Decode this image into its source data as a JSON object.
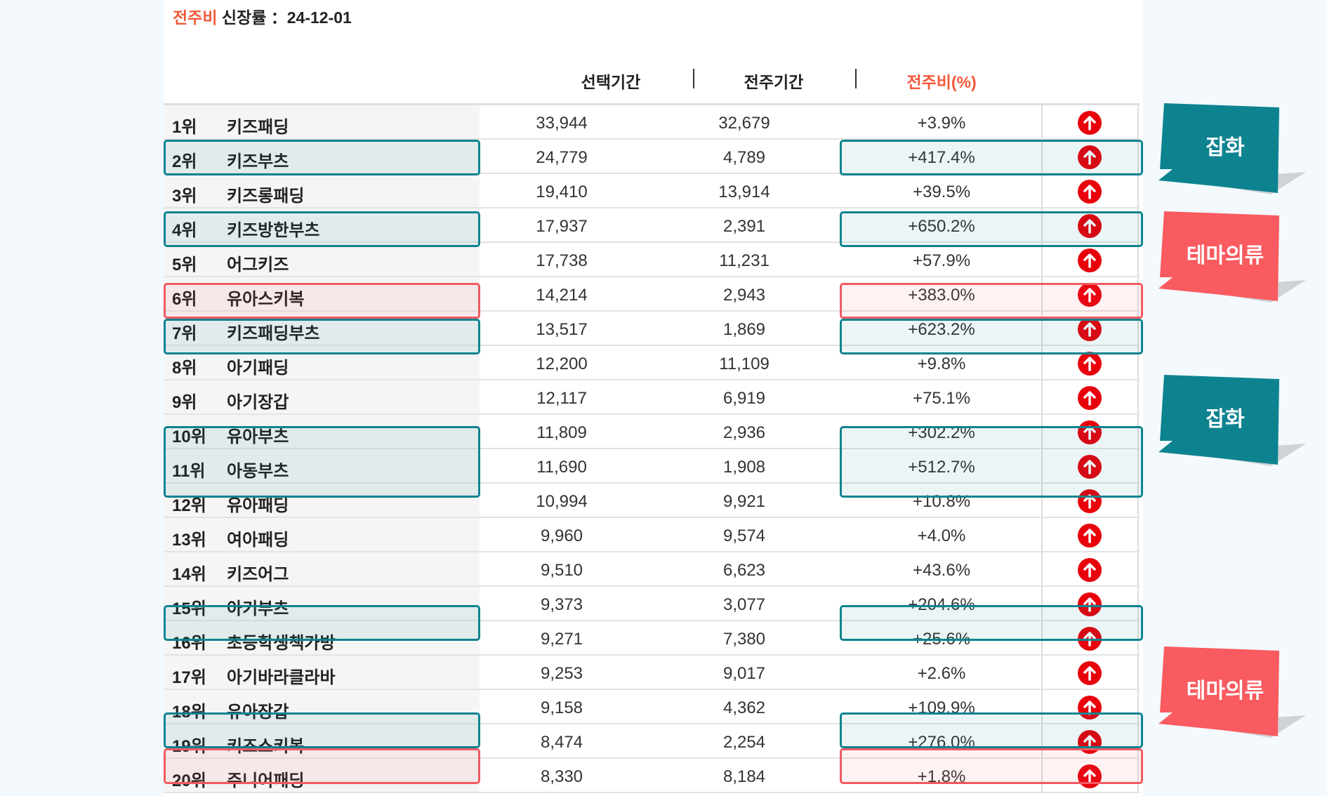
{
  "title": {
    "accent": "전주비",
    "rest": "신장률 ：24-12-01"
  },
  "headers": {
    "selected": "선택기간",
    "previous": "전주기간",
    "ratio": "전주비(%)"
  },
  "rows": [
    {
      "rank": "1위",
      "keyword": "키즈패딩",
      "selected": "33,944",
      "previous": "32,679",
      "ratio": "+3.9%",
      "hl": ""
    },
    {
      "rank": "2위",
      "keyword": "키즈부츠",
      "selected": "24,779",
      "previous": "4,789",
      "ratio": "+417.4%",
      "hl": "teal"
    },
    {
      "rank": "3위",
      "keyword": "키즈롱패딩",
      "selected": "19,410",
      "previous": "13,914",
      "ratio": "+39.5%",
      "hl": ""
    },
    {
      "rank": "4위",
      "keyword": "키즈방한부츠",
      "selected": "17,937",
      "previous": "2,391",
      "ratio": "+650.2%",
      "hl": "teal"
    },
    {
      "rank": "5위",
      "keyword": "어그키즈",
      "selected": "17,738",
      "previous": "11,231",
      "ratio": "+57.9%",
      "hl": ""
    },
    {
      "rank": "6위",
      "keyword": "유아스키복",
      "selected": "14,214",
      "previous": "2,943",
      "ratio": "+383.0%",
      "hl": "pink"
    },
    {
      "rank": "7위",
      "keyword": "키즈패딩부츠",
      "selected": "13,517",
      "previous": "1,869",
      "ratio": "+623.2%",
      "hl": "teal"
    },
    {
      "rank": "8위",
      "keyword": "아기패딩",
      "selected": "12,200",
      "previous": "11,109",
      "ratio": "+9.8%",
      "hl": ""
    },
    {
      "rank": "9위",
      "keyword": "아기장갑",
      "selected": "12,117",
      "previous": "6,919",
      "ratio": "+75.1%",
      "hl": ""
    },
    {
      "rank": "10위",
      "keyword": "유아부츠",
      "selected": "11,809",
      "previous": "2,936",
      "ratio": "+302.2%",
      "hl": "teal2"
    },
    {
      "rank": "11위",
      "keyword": "아동부츠",
      "selected": "11,690",
      "previous": "1,908",
      "ratio": "+512.7%",
      "hl": "teal2"
    },
    {
      "rank": "12위",
      "keyword": "유아패딩",
      "selected": "10,994",
      "previous": "9,921",
      "ratio": "+10.8%",
      "hl": ""
    },
    {
      "rank": "13위",
      "keyword": "여아패딩",
      "selected": "9,960",
      "previous": "9,574",
      "ratio": "+4.0%",
      "hl": ""
    },
    {
      "rank": "14위",
      "keyword": "키즈어그",
      "selected": "9,510",
      "previous": "6,623",
      "ratio": "+43.6%",
      "hl": ""
    },
    {
      "rank": "15위",
      "keyword": "아기부츠",
      "selected": "9,373",
      "previous": "3,077",
      "ratio": "+204.6%",
      "hl": "teal"
    },
    {
      "rank": "16위",
      "keyword": "초등학생책가방",
      "selected": "9,271",
      "previous": "7,380",
      "ratio": "+25.6%",
      "hl": ""
    },
    {
      "rank": "17위",
      "keyword": "아기바라클라바",
      "selected": "9,253",
      "previous": "9,017",
      "ratio": "+2.6%",
      "hl": ""
    },
    {
      "rank": "18위",
      "keyword": "유아장갑",
      "selected": "9,158",
      "previous": "4,362",
      "ratio": "+109.9%",
      "hl": "teal"
    },
    {
      "rank": "19위",
      "keyword": "키즈스키복",
      "selected": "8,474",
      "previous": "2,254",
      "ratio": "+276.0%",
      "hl": "pink"
    },
    {
      "rank": "20위",
      "keyword": "주니어패딩",
      "selected": "8,330",
      "previous": "8,184",
      "ratio": "+1.8%",
      "hl": ""
    }
  ],
  "callouts": [
    {
      "label": "잡화",
      "color": "#0e8390"
    },
    {
      "label": "테마의류",
      "color": "#f95b60"
    },
    {
      "label": "잡화",
      "color": "#0e8390"
    },
    {
      "label": "테마의류",
      "color": "#f95b60"
    }
  ],
  "colors": {
    "accent": "#f4593a",
    "teal": "#0e8390",
    "pink": "#f15a60",
    "up": "#e8000b"
  }
}
